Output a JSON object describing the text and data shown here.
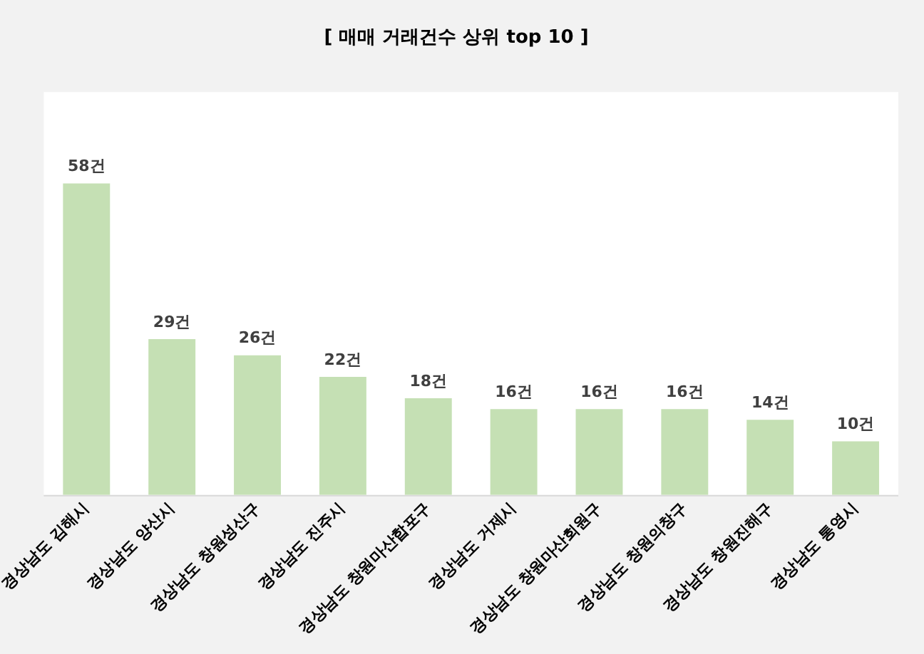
{
  "chart_data": {
    "type": "bar",
    "title": "[ 매매 거래건수 상위 top 10 ]",
    "categories": [
      "경상남도 김해시",
      "경상남도 양산시",
      "경상남도 창원성산구",
      "경상남도 진주시",
      "경상남도 창원마산합포구",
      "경상남도 거제시",
      "경상남도 창원마산회원구",
      "경상남도 창원의창구",
      "경상남도 창원진해구",
      "경상남도 통영시"
    ],
    "values": [
      58,
      29,
      26,
      22,
      18,
      16,
      16,
      16,
      14,
      10
    ],
    "value_labels": [
      "58건",
      "29건",
      "26건",
      "22건",
      "18건",
      "16건",
      "16건",
      "16건",
      "14건",
      "10건"
    ],
    "color": "#c5e0b4",
    "ylim": [
      0,
      75
    ],
    "tick_labels": "x",
    "grid": false,
    "legend": false
  }
}
